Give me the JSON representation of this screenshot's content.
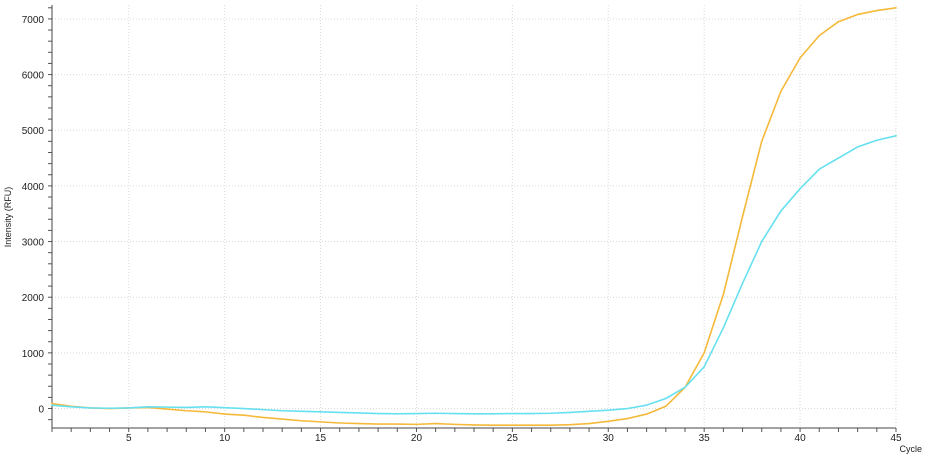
{
  "chart_data": {
    "type": "line",
    "title": "",
    "xlabel": "Cycle",
    "ylabel": "Intensity (RFU)",
    "xlim": [
      1,
      45
    ],
    "ylim": [
      -350,
      7250
    ],
    "xticks": [
      5,
      10,
      15,
      20,
      25,
      30,
      35,
      40,
      45
    ],
    "yticks": [
      0,
      1000,
      2000,
      3000,
      4000,
      5000,
      6000,
      7000
    ],
    "grid": true,
    "legend": "none",
    "x": [
      1,
      2,
      3,
      4,
      5,
      6,
      7,
      8,
      9,
      10,
      11,
      12,
      13,
      14,
      15,
      16,
      17,
      18,
      19,
      20,
      21,
      22,
      23,
      24,
      25,
      26,
      27,
      28,
      29,
      30,
      31,
      32,
      33,
      34,
      35,
      36,
      37,
      38,
      39,
      40,
      41,
      42,
      43,
      44,
      45
    ],
    "series": [
      {
        "name": "",
        "color": "#f5b93a",
        "values": [
          90,
          40,
          10,
          0,
          10,
          20,
          -10,
          -40,
          -60,
          -100,
          -120,
          -160,
          -190,
          -220,
          -240,
          -260,
          -270,
          -280,
          -280,
          -285,
          -270,
          -285,
          -295,
          -300,
          -300,
          -300,
          -300,
          -290,
          -270,
          -230,
          -180,
          -100,
          40,
          380,
          1000,
          2050,
          3450,
          4800,
          5700,
          6300,
          6700,
          6950,
          7080,
          7150,
          7200
        ]
      },
      {
        "name": "",
        "color": "#66e0f0",
        "values": [
          60,
          30,
          10,
          5,
          10,
          30,
          25,
          20,
          30,
          15,
          0,
          -20,
          -40,
          -50,
          -60,
          -70,
          -80,
          -90,
          -95,
          -90,
          -85,
          -90,
          -95,
          -95,
          -90,
          -90,
          -85,
          -70,
          -50,
          -30,
          0,
          60,
          180,
          380,
          750,
          1450,
          2250,
          3000,
          3550,
          3950,
          4300,
          4500,
          4700,
          4820,
          4900
        ]
      }
    ]
  }
}
